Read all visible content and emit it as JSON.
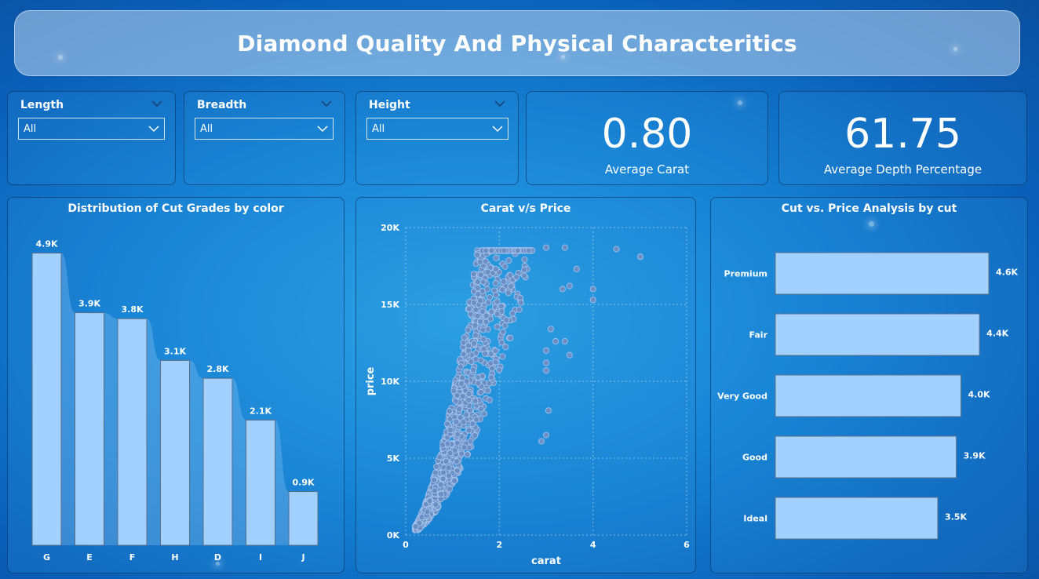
{
  "title": "Diamond Quality And Physical Characteritics",
  "filters": [
    {
      "label": "Length",
      "value": "All"
    },
    {
      "label": "Breadth",
      "value": "All"
    },
    {
      "label": "Height",
      "value": "All"
    }
  ],
  "kpis": [
    {
      "value": "0.80",
      "label": "Average Carat"
    },
    {
      "value": "61.75",
      "label": "Average Depth Percentage"
    }
  ],
  "colors": {
    "bar_fill": "#a3d1ff",
    "bar_stroke": "#5a6f86",
    "scatter_point": "#6b8fc4"
  },
  "chart_data": [
    {
      "type": "bar",
      "title": "Distribution of Cut Grades by color",
      "categories": [
        "G",
        "E",
        "F",
        "H",
        "D",
        "I",
        "J"
      ],
      "values": [
        4.9,
        3.9,
        3.8,
        3.1,
        2.8,
        2.1,
        0.9
      ],
      "labels": [
        "4.9K",
        "3.9K",
        "3.8K",
        "3.1K",
        "2.8K",
        "2.1K",
        "0.9K"
      ],
      "ylim": [
        0,
        5.0
      ]
    },
    {
      "type": "scatter",
      "title": "Carat v/s Price",
      "xlabel": "carat",
      "ylabel": "price",
      "xlim": [
        0,
        6
      ],
      "ylim": [
        0,
        20000
      ],
      "x_ticks": [
        "0",
        "2",
        "4",
        "6"
      ],
      "y_ticks": [
        "0K",
        "5K",
        "10K",
        "15K",
        "20K"
      ],
      "outliers": [
        {
          "x": 3.0,
          "y": 18700
        },
        {
          "x": 3.4,
          "y": 18700
        },
        {
          "x": 4.5,
          "y": 18600
        },
        {
          "x": 5.01,
          "y": 18100
        },
        {
          "x": 3.65,
          "y": 17300
        },
        {
          "x": 3.5,
          "y": 16200
        },
        {
          "x": 3.35,
          "y": 16000
        },
        {
          "x": 4.0,
          "y": 16000
        },
        {
          "x": 4.0,
          "y": 15300
        },
        {
          "x": 3.2,
          "y": 12600
        },
        {
          "x": 3.4,
          "y": 12600
        },
        {
          "x": 3.5,
          "y": 11700
        },
        {
          "x": 3.0,
          "y": 12000
        },
        {
          "x": 3.1,
          "y": 13400
        },
        {
          "x": 3.05,
          "y": 8100
        },
        {
          "x": 2.9,
          "y": 6100
        },
        {
          "x": 3.0,
          "y": 6500
        },
        {
          "x": 3.0,
          "y": 10700
        },
        {
          "x": 3.0,
          "y": 11200
        }
      ]
    },
    {
      "type": "bar",
      "orientation": "horizontal",
      "title": "Cut vs. Price Analysis by cut",
      "categories": [
        "Premium",
        "Fair",
        "Very Good",
        "Good",
        "Ideal"
      ],
      "values": [
        4.6,
        4.4,
        4.0,
        3.9,
        3.5
      ],
      "labels": [
        "4.6K",
        "4.4K",
        "4.0K",
        "3.9K",
        "3.5K"
      ],
      "xlim": [
        0,
        4.6
      ]
    }
  ]
}
